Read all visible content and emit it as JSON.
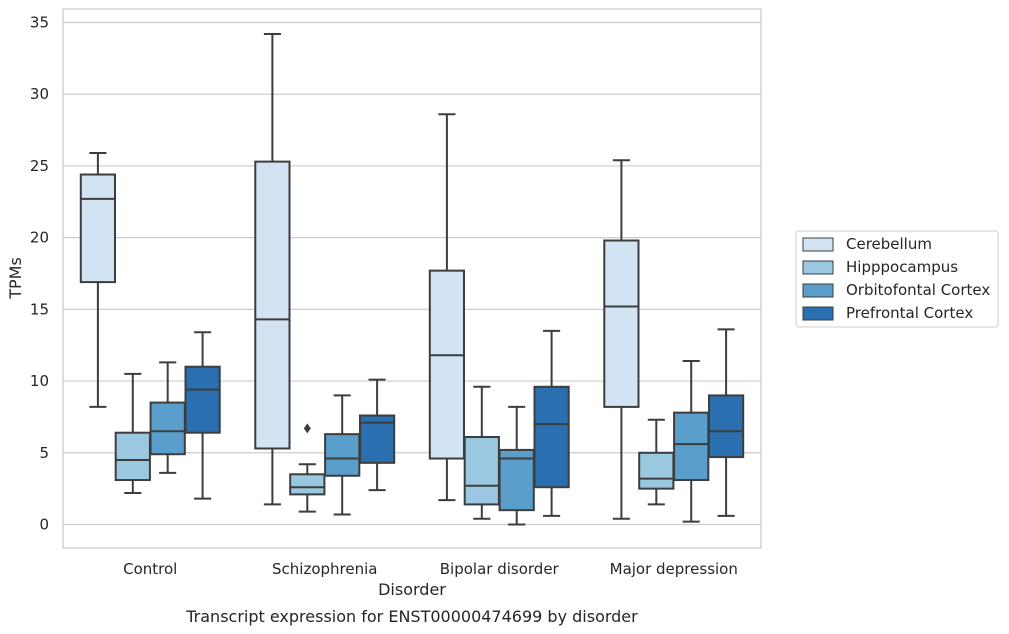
{
  "chart_data": {
    "type": "boxplot",
    "caption": "Transcript expression for ENST00000474699 by disorder",
    "xlabel": "Disorder",
    "ylabel": "TPMs",
    "ylim": [
      -1.6,
      35.8
    ],
    "yticks": [
      0,
      5,
      10,
      15,
      20,
      25,
      30,
      35
    ],
    "grid": "horizontal",
    "legend_position": "right",
    "categories": [
      "Control",
      "Schizophrenia",
      "Bipolar disorder",
      "Major depression"
    ],
    "series": [
      {
        "name": "Cerebellum",
        "color": "#d2e3f3",
        "boxes": [
          {
            "min": 8.2,
            "q1": 16.9,
            "median": 22.7,
            "q3": 24.4,
            "max": 25.9,
            "outliers": []
          },
          {
            "min": 1.4,
            "q1": 5.3,
            "median": 14.3,
            "q3": 25.3,
            "max": 34.2,
            "outliers": []
          },
          {
            "min": 1.7,
            "q1": 4.6,
            "median": 11.8,
            "q3": 17.7,
            "max": 28.6,
            "outliers": []
          },
          {
            "min": 0.4,
            "q1": 8.2,
            "median": 15.2,
            "q3": 19.8,
            "max": 25.4,
            "outliers": []
          }
        ]
      },
      {
        "name": "Hipppocampus",
        "color": "#9ac8e0",
        "boxes": [
          {
            "min": 2.2,
            "q1": 3.1,
            "median": 4.5,
            "q3": 6.4,
            "max": 10.5,
            "outliers": []
          },
          {
            "min": 0.9,
            "q1": 2.1,
            "median": 2.6,
            "q3": 3.5,
            "max": 4.2,
            "outliers": [
              6.7
            ]
          },
          {
            "min": 0.4,
            "q1": 1.4,
            "median": 2.7,
            "q3": 6.1,
            "max": 9.6,
            "outliers": []
          },
          {
            "min": 1.4,
            "q1": 2.5,
            "median": 3.2,
            "q3": 5.0,
            "max": 7.3,
            "outliers": []
          }
        ]
      },
      {
        "name": "Orbitofontal Cortex",
        "color": "#5a9ecb",
        "boxes": [
          {
            "min": 3.6,
            "q1": 4.9,
            "median": 6.5,
            "q3": 8.5,
            "max": 11.3,
            "outliers": []
          },
          {
            "min": 0.7,
            "q1": 3.4,
            "median": 4.6,
            "q3": 6.3,
            "max": 9.0,
            "outliers": []
          },
          {
            "min": 0.0,
            "q1": 1.0,
            "median": 4.6,
            "q3": 5.2,
            "max": 8.2,
            "outliers": []
          },
          {
            "min": 0.2,
            "q1": 3.1,
            "median": 5.6,
            "q3": 7.8,
            "max": 11.4,
            "outliers": []
          }
        ]
      },
      {
        "name": "Prefrontal Cortex",
        "color": "#2a6fb0",
        "boxes": [
          {
            "min": 1.8,
            "q1": 6.4,
            "median": 9.4,
            "q3": 11.0,
            "max": 13.4,
            "outliers": []
          },
          {
            "min": 2.4,
            "q1": 4.3,
            "median": 7.1,
            "q3": 7.6,
            "max": 10.1,
            "outliers": []
          },
          {
            "min": 0.6,
            "q1": 2.6,
            "median": 7.0,
            "q3": 9.6,
            "max": 13.5,
            "outliers": []
          },
          {
            "min": 0.6,
            "q1": 4.7,
            "median": 6.5,
            "q3": 9.0,
            "max": 13.6,
            "outliers": []
          }
        ]
      }
    ]
  }
}
